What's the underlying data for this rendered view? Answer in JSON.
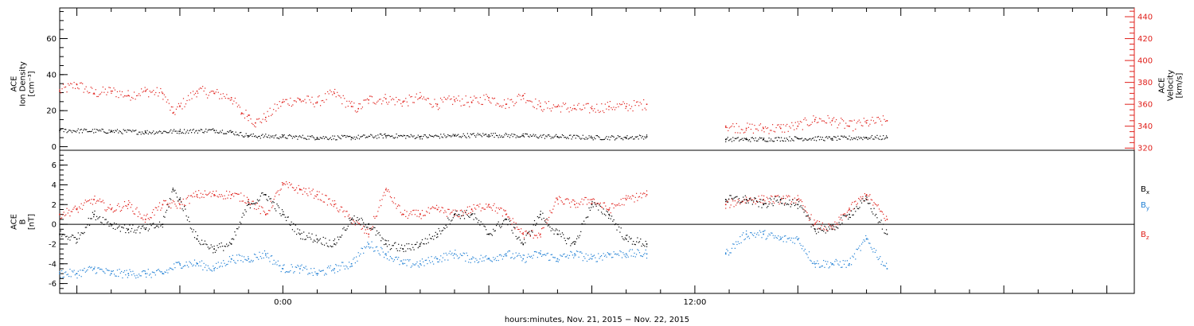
{
  "chart_data": [
    {
      "type": "scatter",
      "name": "ion-density-velocity",
      "ylabel_lines": [
        "ACE",
        "Ion Density",
        "[cm⁻³]"
      ],
      "ylim": [
        -2,
        77
      ],
      "yticks": [
        0,
        20,
        40,
        60
      ],
      "y2label_lines": [
        "ACE",
        "Velocity",
        "[km/s]"
      ],
      "y2lim": [
        318,
        448
      ],
      "y2ticks": [
        320,
        340,
        360,
        380,
        400,
        420,
        440
      ],
      "series": [
        {
          "name": "density",
          "color": "#000000",
          "axis": "left",
          "segments": [
            {
              "x": [
                -6.5,
                -5.0,
                -4.0,
                -3.0,
                -2.0,
                -1.5,
                -1.0,
                0.0,
                1.0,
                2.0,
                3.0,
                4.0,
                5.0,
                6.0,
                7.0,
                8.0,
                9.0,
                10.0,
                10.6
              ],
              "y": [
                9,
                8.5,
                8,
                8.5,
                9,
                8,
                6,
                5.5,
                5,
                5,
                6,
                5.5,
                6,
                6.5,
                6,
                5.5,
                5,
                5,
                5.5
              ]
            },
            {
              "x": [
                12.9,
                13.5,
                14.0,
                15.0,
                16.0,
                17.0,
                17.6
              ],
              "y": [
                4,
                4,
                4,
                4.5,
                4.5,
                5,
                5
              ]
            }
          ]
        },
        {
          "name": "velocity",
          "color": "#e0201b",
          "axis": "right",
          "segments": [
            {
              "x": [
                -6.5,
                -6.0,
                -5.5,
                -5.0,
                -4.5,
                -4.0,
                -3.5,
                -3.2,
                -3.0,
                -2.5,
                -2.0,
                -1.5,
                -1.2,
                -1.0,
                -0.8,
                -0.5,
                0.0,
                0.5,
                1.0,
                1.5,
                2.0,
                2.2,
                2.5,
                3.0,
                3.5,
                4.0,
                4.5,
                5.0,
                5.5,
                6.0,
                6.5,
                7.0,
                7.5,
                8.0,
                8.5,
                9.0,
                9.5,
                10.0,
                10.6
              ],
              "y": [
                372,
                378,
                370,
                372,
                368,
                372,
                370,
                352,
                358,
                372,
                370,
                366,
                352,
                350,
                343,
                348,
                362,
                364,
                362,
                370,
                358,
                356,
                364,
                365,
                362,
                366,
                360,
                364,
                362,
                366,
                360,
                368,
                358,
                358,
                356,
                356,
                358,
                358,
                360
              ]
            },
            {
              "x": [
                12.9,
                13.5,
                14.0,
                14.5,
                15.0,
                15.5,
                16.0,
                16.5,
                17.0,
                17.6
              ],
              "y": [
                340,
                338,
                338,
                338,
                340,
                346,
                345,
                340,
                343,
                345
              ]
            }
          ]
        }
      ]
    },
    {
      "type": "scatter",
      "name": "magnetic-field",
      "ylabel_lines": [
        "ACE",
        "B",
        "[nT]"
      ],
      "ylim": [
        -7,
        7.5
      ],
      "yticks": [
        -6,
        -4,
        -2,
        0,
        2,
        4,
        6
      ],
      "zero_line": 0,
      "xlabel": "hours:minutes, Nov. 21, 2015 − Nov. 22, 2015",
      "xlim": [
        -6.5,
        24.8
      ],
      "xticks": [
        {
          "value": 0,
          "label": "0:00"
        },
        {
          "value": 12,
          "label": "12:00"
        }
      ],
      "series": [
        {
          "name": "Bx",
          "legend_label": "B",
          "legend_sub": "x",
          "color": "#000000",
          "segments": [
            {
              "x": [
                -6.5,
                -6.0,
                -5.5,
                -5.0,
                -4.5,
                -4.0,
                -3.5,
                -3.2,
                -3.0,
                -2.5,
                -2.0,
                -1.5,
                -1.0,
                -0.5,
                0.0,
                0.5,
                1.0,
                1.5,
                2.0,
                2.5,
                3.0,
                3.5,
                4.0,
                4.5,
                5.0,
                5.5,
                6.0,
                6.5,
                7.0,
                7.5,
                8.0,
                8.5,
                9.0,
                9.5,
                10.0,
                10.6
              ],
              "y": [
                -1,
                -1.5,
                1,
                0,
                -0.5,
                -0.5,
                0,
                3.5,
                2.5,
                -1.5,
                -2.5,
                -2,
                2,
                3,
                1,
                -1,
                -1.5,
                -2,
                0.5,
                0,
                -2,
                -2.5,
                -2,
                -1,
                1,
                1,
                -1,
                0.5,
                -2,
                1,
                -1,
                -2,
                2,
                1,
                -1.5,
                -2
              ]
            },
            {
              "x": [
                12.9,
                13.5,
                14.0,
                14.5,
                15.0,
                15.5,
                16.0,
                16.5,
                17.0,
                17.6
              ],
              "y": [
                2.5,
                2.5,
                2,
                2.5,
                2,
                -0.5,
                -0.5,
                1,
                2.5,
                -1
              ]
            }
          ]
        },
        {
          "name": "By",
          "legend_label": "B",
          "legend_sub": "y",
          "color": "#1f7fd4",
          "segments": [
            {
              "x": [
                -6.5,
                -6.0,
                -5.5,
                -5.0,
                -4.5,
                -4.0,
                -3.5,
                -3.0,
                -2.5,
                -2.0,
                -1.5,
                -1.0,
                -0.5,
                0.0,
                0.5,
                1.0,
                1.5,
                2.0,
                2.5,
                3.0,
                3.5,
                4.0,
                4.5,
                5.0,
                5.5,
                6.0,
                6.5,
                7.0,
                7.5,
                8.0,
                8.5,
                9.0,
                9.5,
                10.0,
                10.6
              ],
              "y": [
                -5,
                -5,
                -4.5,
                -5,
                -5,
                -5,
                -5,
                -4,
                -4,
                -4.5,
                -3.5,
                -3.5,
                -3,
                -4.5,
                -4.5,
                -5,
                -4.5,
                -4,
                -2,
                -3,
                -4,
                -4,
                -3.5,
                -3,
                -3.5,
                -3.5,
                -3,
                -3.5,
                -3,
                -3.5,
                -3,
                -3.5,
                -3,
                -3,
                -3
              ]
            },
            {
              "x": [
                12.9,
                13.5,
                14.0,
                14.5,
                15.0,
                15.5,
                16.0,
                16.5,
                17.0,
                17.6
              ],
              "y": [
                -3,
                -1,
                -1,
                -1.5,
                -1.5,
                -4,
                -4,
                -4,
                -1.5,
                -4.5
              ]
            }
          ]
        },
        {
          "name": "Bz",
          "legend_label": "B",
          "legend_sub": "z",
          "color": "#e0201b",
          "segments": [
            {
              "x": [
                -6.5,
                -6.0,
                -5.5,
                -5.0,
                -4.5,
                -4.0,
                -3.5,
                -3.0,
                -2.5,
                -2.0,
                -1.5,
                -1.0,
                -0.5,
                0.0,
                0.5,
                1.0,
                1.5,
                2.0,
                2.5,
                3.0,
                3.5,
                4.0,
                4.5,
                5.0,
                5.5,
                6.0,
                6.5,
                7.0,
                7.5,
                8.0,
                8.5,
                9.0,
                9.5,
                10.0,
                10.6
              ],
              "y": [
                1,
                1.5,
                2.5,
                1.5,
                2,
                0.5,
                2,
                2,
                3,
                3,
                3,
                2.5,
                1,
                4,
                3.5,
                3,
                2,
                0.5,
                -1,
                3.5,
                1,
                1,
                1.5,
                1,
                1.5,
                2,
                1,
                -1,
                -1,
                2.5,
                2,
                2.5,
                1.5,
                2.5,
                3
              ]
            },
            {
              "x": [
                12.9,
                13.5,
                14.0,
                14.5,
                15.0,
                15.5,
                16.0,
                16.5,
                17.0,
                17.6
              ],
              "y": [
                2,
                2.5,
                2.5,
                2.5,
                2.5,
                0,
                -0.5,
                1.5,
                3,
                0.5
              ]
            }
          ]
        }
      ]
    }
  ]
}
